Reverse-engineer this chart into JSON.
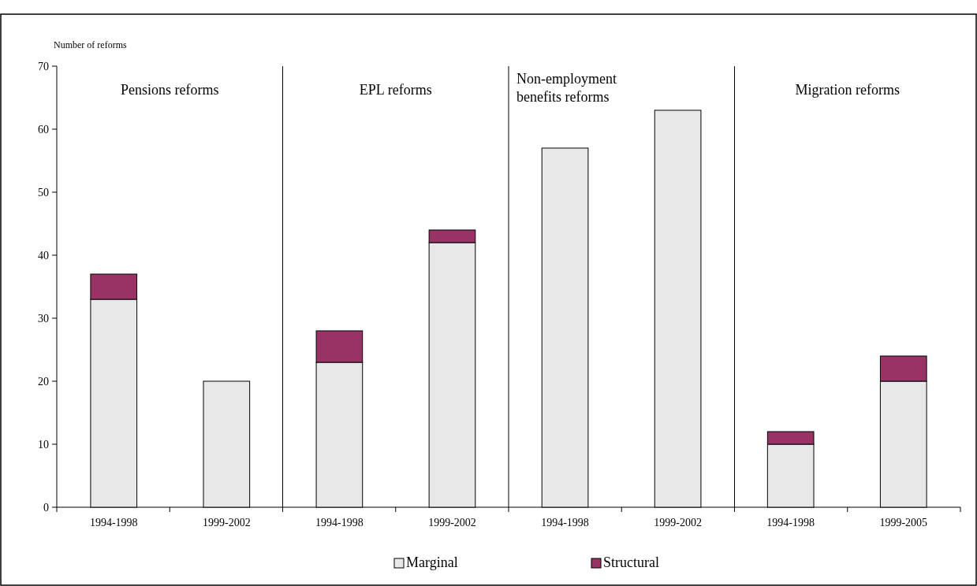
{
  "chart_data": {
    "type": "bar",
    "stacked": true,
    "ylabel": "Number of reforms",
    "categories": [
      "1994-1998",
      "1999-2002",
      "1994-1998",
      "1999-2002",
      "1994-1998",
      "1999-2002",
      "1994-1998",
      "1999-2005"
    ],
    "series": [
      {
        "name": "Marginal",
        "color": "#e8e8e8",
        "values": [
          33,
          20,
          23,
          42,
          57,
          63,
          10,
          20
        ]
      },
      {
        "name": "Structural",
        "color": "#993366",
        "values": [
          4,
          null,
          5,
          2,
          null,
          null,
          2,
          4
        ]
      }
    ],
    "ylim": [
      0,
      70
    ],
    "yticks": [
      0,
      10,
      20,
      30,
      40,
      50,
      60,
      70
    ],
    "grid": false,
    "legend": "bottom",
    "annotations": [
      "Pensions reforms",
      "EPL reforms",
      "Non-employment\nbenefits reforms",
      "Migration reforms"
    ]
  }
}
